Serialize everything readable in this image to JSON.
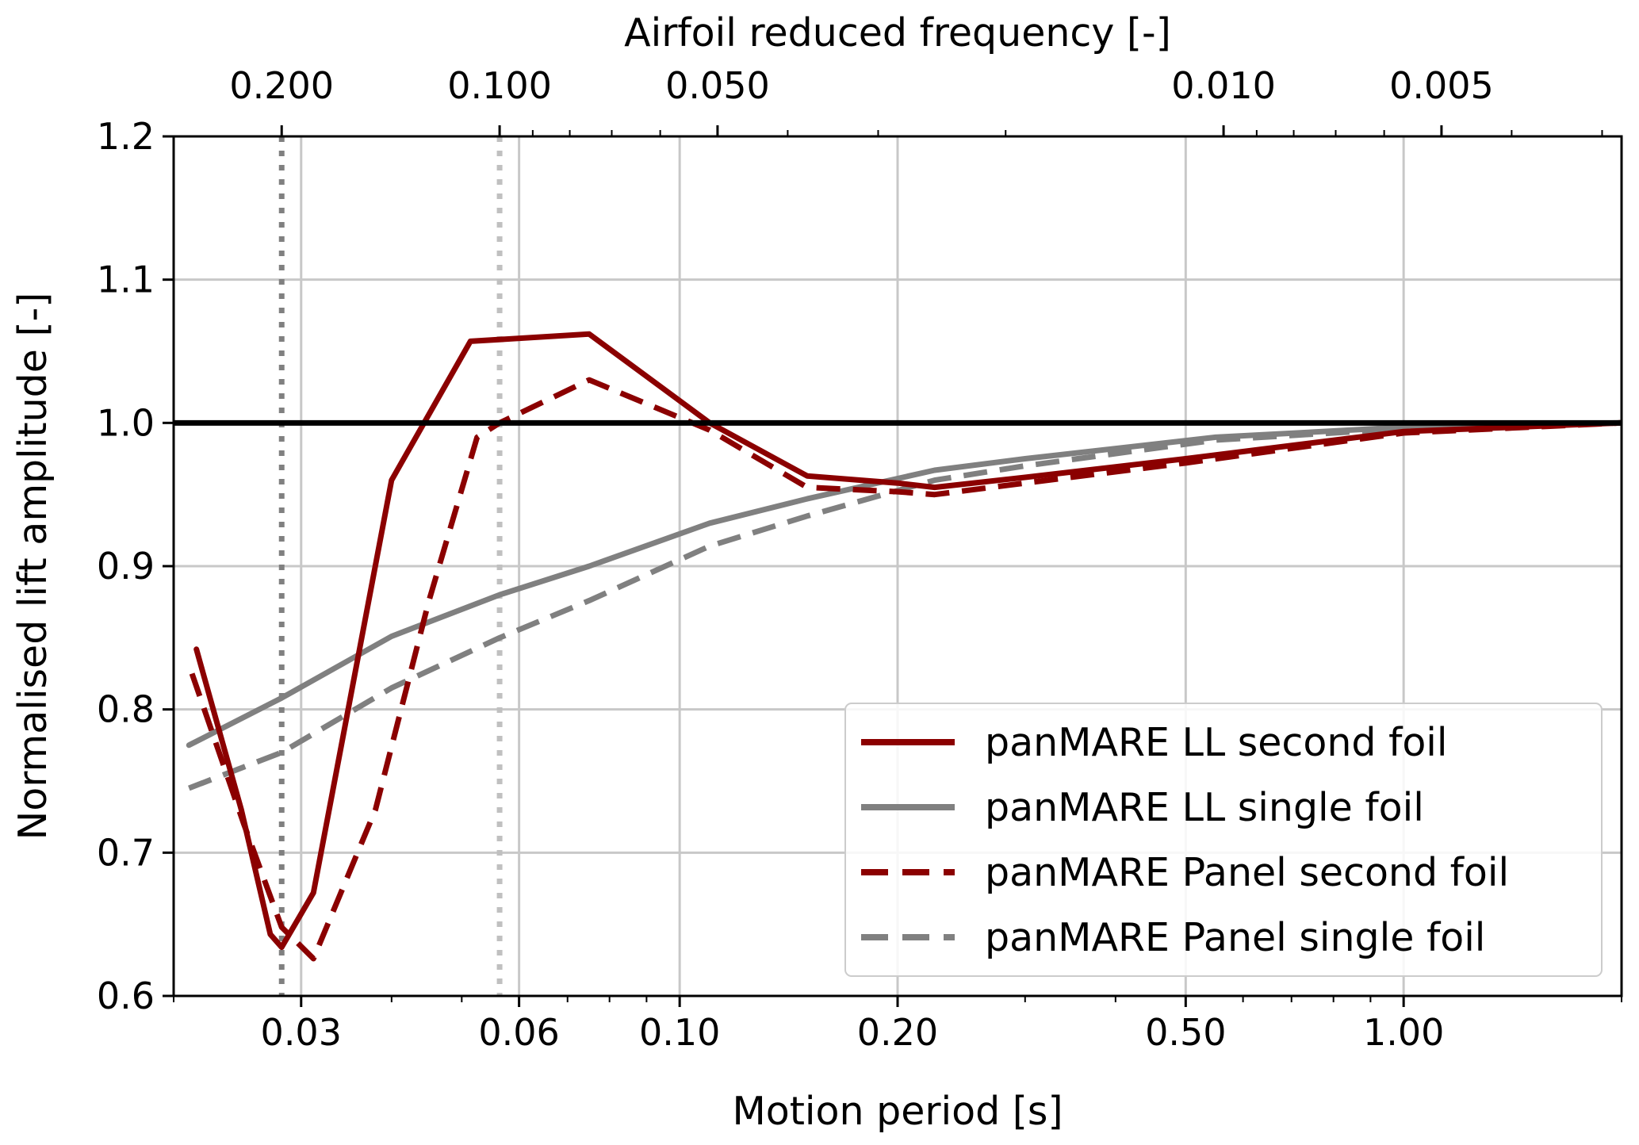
{
  "chart_data": {
    "type": "line",
    "xscale": "log",
    "xlabel": "Motion period [s]",
    "ylabel": "Normalised lift amplitude [-]",
    "xlim": [
      0.02,
      2.0
    ],
    "ylim": [
      0.6,
      1.2
    ],
    "grid": true,
    "legend_position": "lower-right",
    "x_ticks": [
      {
        "value": 0.03,
        "label": "0.03"
      },
      {
        "value": 0.06,
        "label": "0.06"
      },
      {
        "value": 0.1,
        "label": "0.10"
      },
      {
        "value": 0.2,
        "label": "0.20"
      },
      {
        "value": 0.5,
        "label": "0.50"
      },
      {
        "value": 1.0,
        "label": "1.00"
      }
    ],
    "y_ticks": [
      {
        "value": 0.6,
        "label": "0.6"
      },
      {
        "value": 0.7,
        "label": "0.7"
      },
      {
        "value": 0.8,
        "label": "0.8"
      },
      {
        "value": 0.9,
        "label": "0.9"
      },
      {
        "value": 1.0,
        "label": "1.0"
      },
      {
        "value": 1.1,
        "label": "1.1"
      },
      {
        "value": 1.2,
        "label": "1.2"
      }
    ],
    "secondary_x_axis": {
      "label": "Airfoil reduced frequency [-]",
      "position": "top",
      "ticks": [
        {
          "period": 0.0282,
          "label": "0.200"
        },
        {
          "period": 0.0564,
          "label": "0.100"
        },
        {
          "period": 0.1128,
          "label": "0.050"
        },
        {
          "period": 0.564,
          "label": "0.010"
        },
        {
          "period": 1.128,
          "label": "0.005"
        }
      ]
    },
    "reference_lines": [
      {
        "type": "horizontal",
        "y": 1.0,
        "color": "#000000",
        "style": "solid"
      },
      {
        "type": "vertical",
        "x": 0.0282,
        "color": "#808080",
        "style": "dotted"
      },
      {
        "type": "vertical",
        "x": 0.0564,
        "color": "#c0c0c0",
        "style": "dotted"
      }
    ],
    "series": [
      {
        "name": "panMARE LL second foil",
        "color": "#8b0000",
        "style": "solid",
        "x": [
          0.0215,
          0.0248,
          0.0272,
          0.0282,
          0.0312,
          0.04,
          0.0514,
          0.075,
          0.11,
          0.15,
          0.2,
          0.225,
          0.3,
          0.5,
          1.0,
          2.0
        ],
        "y": [
          0.842,
          0.73,
          0.643,
          0.634,
          0.672,
          0.96,
          1.057,
          1.062,
          1.0,
          0.963,
          0.958,
          0.955,
          0.962,
          0.975,
          0.994,
          1.0
        ]
      },
      {
        "name": "panMARE LL single foil",
        "color": "#808080",
        "style": "solid",
        "x": [
          0.021,
          0.0282,
          0.04,
          0.0564,
          0.075,
          0.11,
          0.15,
          0.225,
          0.3,
          0.55,
          1.0,
          2.0
        ],
        "y": [
          0.775,
          0.808,
          0.851,
          0.88,
          0.9,
          0.93,
          0.947,
          0.967,
          0.975,
          0.99,
          0.997,
          1.0
        ]
      },
      {
        "name": "panMARE Panel second foil",
        "color": "#8b0000",
        "style": "dashed",
        "x": [
          0.0212,
          0.025,
          0.0282,
          0.0312,
          0.038,
          0.045,
          0.0525,
          0.0564,
          0.075,
          0.11,
          0.15,
          0.2,
          0.225,
          0.3,
          0.5,
          1.0,
          2.0
        ],
        "y": [
          0.825,
          0.72,
          0.648,
          0.626,
          0.73,
          0.875,
          0.99,
          1.0,
          1.03,
          0.995,
          0.955,
          0.952,
          0.95,
          0.958,
          0.972,
          0.993,
          1.0
        ]
      },
      {
        "name": "panMARE Panel single foil",
        "color": "#808080",
        "style": "dashed",
        "x": [
          0.021,
          0.0282,
          0.04,
          0.0564,
          0.075,
          0.11,
          0.15,
          0.225,
          0.3,
          0.55,
          1.0,
          2.0
        ],
        "y": [
          0.745,
          0.77,
          0.815,
          0.85,
          0.876,
          0.914,
          0.935,
          0.96,
          0.97,
          0.988,
          0.996,
          1.0
        ]
      }
    ]
  }
}
